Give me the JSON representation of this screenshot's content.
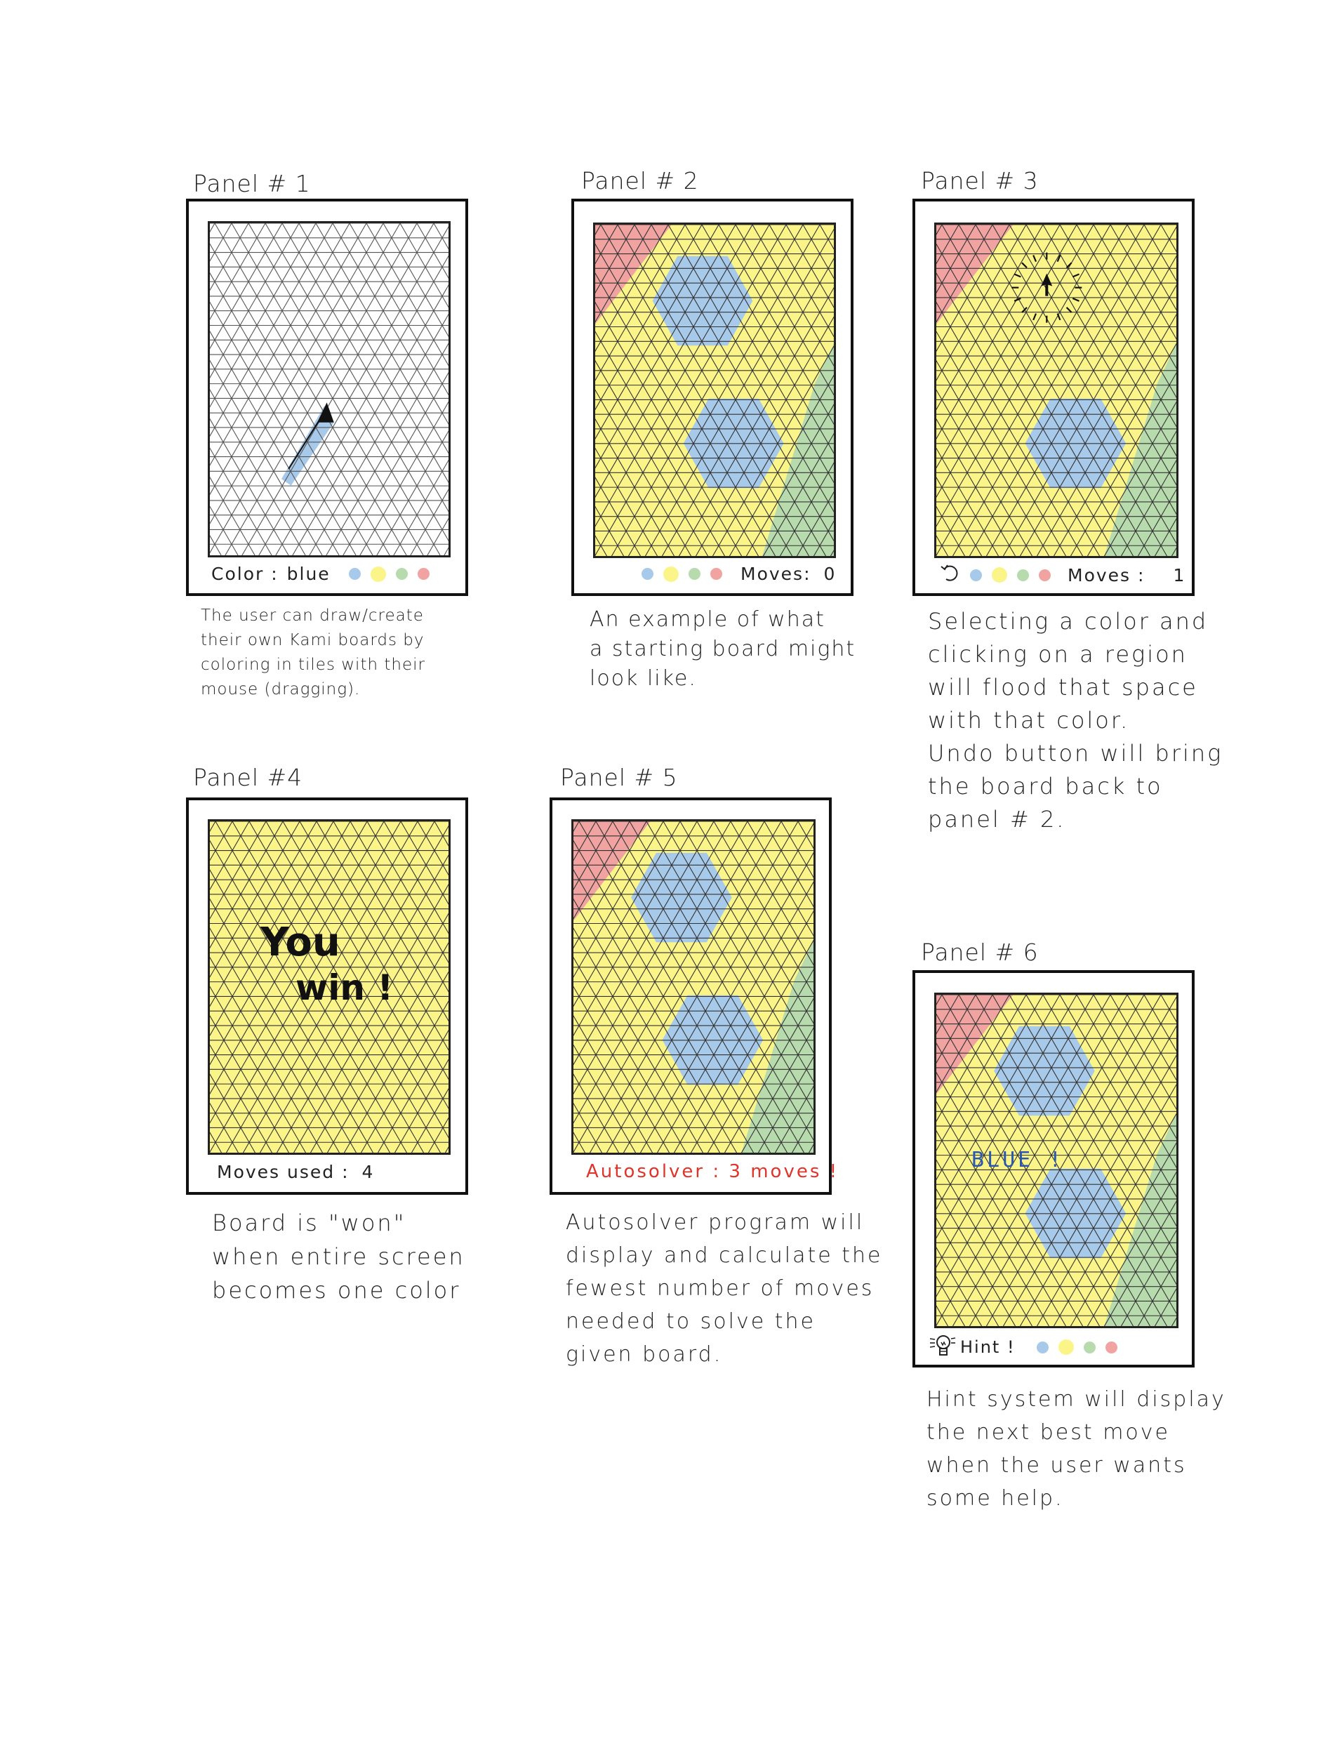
{
  "colors": {
    "blue": "#a7c9ea",
    "yellow": "#fbf589",
    "green": "#b7dbad",
    "red": "#f0a3a0",
    "gridline": "#333333",
    "autosolver_text": "#e0342a",
    "hint_text": "#2a58b0"
  },
  "panels": [
    {
      "title": "Panel # 1",
      "board_type": "blank grid with drag stroke",
      "bar": {
        "label": "Color :",
        "value": "blue",
        "palette": [
          "blue",
          "yellow",
          "green",
          "red"
        ]
      },
      "caption": "The user can draw/create\ntheir own Kami boards by\ncoloring in tiles with their\nmouse (dragging)."
    },
    {
      "title": "Panel # 2",
      "board_type": "starting board",
      "bar": {
        "palette": [
          "blue",
          "yellow",
          "green",
          "red"
        ],
        "moves_label": "Moves:",
        "moves_value": "0"
      },
      "caption": "An example of what\na starting board might\nlook like."
    },
    {
      "title": "Panel # 3",
      "board_type": "flood fill click",
      "bar": {
        "undo_icon": "undo-icon",
        "palette": [
          "blue",
          "yellow",
          "green",
          "red"
        ],
        "moves_label": "Moves :",
        "moves_value": "1"
      },
      "caption": "Selecting a color and\nclicking on a region\nwill flood that space\nwith that color.\nUndo button will bring\nthe board back to\npanel # 2."
    },
    {
      "title": "Panel #4",
      "board_type": "solved board",
      "overlay": {
        "line1": "You",
        "line2": "win !"
      },
      "bar": {
        "label": "Moves used :",
        "value": "4"
      },
      "caption": "Board is \"won\"\nwhen entire screen\nbecomes one color"
    },
    {
      "title": "Panel # 5",
      "board_type": "starting board",
      "bar": {
        "text": "Autosolver : 3 moves !"
      },
      "caption": "Autosolver program will\ndisplay and calculate the\nfewest number of moves\nneeded to solve the\ngiven board."
    },
    {
      "title": "Panel # 6",
      "board_type": "starting board with hint",
      "hint_overlay": "BLUE !",
      "bar": {
        "hint_icon": "lightbulb-icon",
        "hint_label": "Hint !",
        "palette": [
          "blue",
          "yellow",
          "green",
          "red"
        ]
      },
      "caption": "Hint system will display\nthe next best move\nwhen the user wants\nsome help."
    }
  ]
}
